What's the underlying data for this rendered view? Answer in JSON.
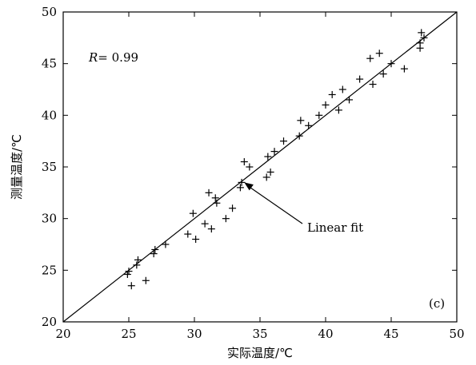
{
  "chart_data": {
    "type": "scatter",
    "xlabel": "实际温度/℃",
    "ylabel": "测量温度/℃",
    "xlim": [
      20,
      50
    ],
    "ylim": [
      20,
      50
    ],
    "xticks": [
      20,
      25,
      30,
      35,
      40,
      45,
      50
    ],
    "yticks": [
      20,
      25,
      30,
      35,
      40,
      45,
      50
    ],
    "grid": false,
    "marker": "plus",
    "r_label": "R",
    "r_value": "= 0.99",
    "panel_label": "(c)",
    "fit_line_label": "Linear fit",
    "fit_line": {
      "x": [
        20,
        50
      ],
      "y": [
        20,
        50
      ]
    },
    "annotation_arrow_target": {
      "x": 33.8,
      "y": 33.5
    },
    "points": [
      {
        "x": 24.9,
        "y": 24.6
      },
      {
        "x": 25.0,
        "y": 24.9
      },
      {
        "x": 25.2,
        "y": 23.5
      },
      {
        "x": 25.6,
        "y": 25.5
      },
      {
        "x": 25.7,
        "y": 26.0
      },
      {
        "x": 26.3,
        "y": 24.0
      },
      {
        "x": 26.9,
        "y": 26.6
      },
      {
        "x": 27.0,
        "y": 27.0
      },
      {
        "x": 27.8,
        "y": 27.5
      },
      {
        "x": 29.5,
        "y": 28.5
      },
      {
        "x": 29.9,
        "y": 30.5
      },
      {
        "x": 30.1,
        "y": 28.0
      },
      {
        "x": 30.8,
        "y": 29.5
      },
      {
        "x": 31.1,
        "y": 32.5
      },
      {
        "x": 31.3,
        "y": 29.0
      },
      {
        "x": 31.6,
        "y": 32.0
      },
      {
        "x": 31.7,
        "y": 31.5
      },
      {
        "x": 32.4,
        "y": 30.0
      },
      {
        "x": 32.9,
        "y": 31.0
      },
      {
        "x": 33.5,
        "y": 33.0
      },
      {
        "x": 33.6,
        "y": 33.5
      },
      {
        "x": 33.8,
        "y": 35.5
      },
      {
        "x": 34.2,
        "y": 35.0
      },
      {
        "x": 35.5,
        "y": 34.0
      },
      {
        "x": 35.6,
        "y": 36.0
      },
      {
        "x": 35.8,
        "y": 34.5
      },
      {
        "x": 36.1,
        "y": 36.5
      },
      {
        "x": 36.8,
        "y": 37.5
      },
      {
        "x": 38.0,
        "y": 38.0
      },
      {
        "x": 38.1,
        "y": 39.5
      },
      {
        "x": 38.7,
        "y": 39.0
      },
      {
        "x": 39.5,
        "y": 40.0
      },
      {
        "x": 40.0,
        "y": 41.0
      },
      {
        "x": 40.5,
        "y": 42.0
      },
      {
        "x": 41.0,
        "y": 40.5
      },
      {
        "x": 41.3,
        "y": 42.5
      },
      {
        "x": 41.8,
        "y": 41.5
      },
      {
        "x": 42.6,
        "y": 43.5
      },
      {
        "x": 43.4,
        "y": 45.5
      },
      {
        "x": 43.6,
        "y": 43.0
      },
      {
        "x": 44.1,
        "y": 46.0
      },
      {
        "x": 44.4,
        "y": 44.0
      },
      {
        "x": 45.0,
        "y": 45.0
      },
      {
        "x": 46.0,
        "y": 44.5
      },
      {
        "x": 47.2,
        "y": 46.5
      },
      {
        "x": 47.2,
        "y": 47.0
      },
      {
        "x": 47.3,
        "y": 48.0
      },
      {
        "x": 47.5,
        "y": 47.5
      }
    ]
  }
}
